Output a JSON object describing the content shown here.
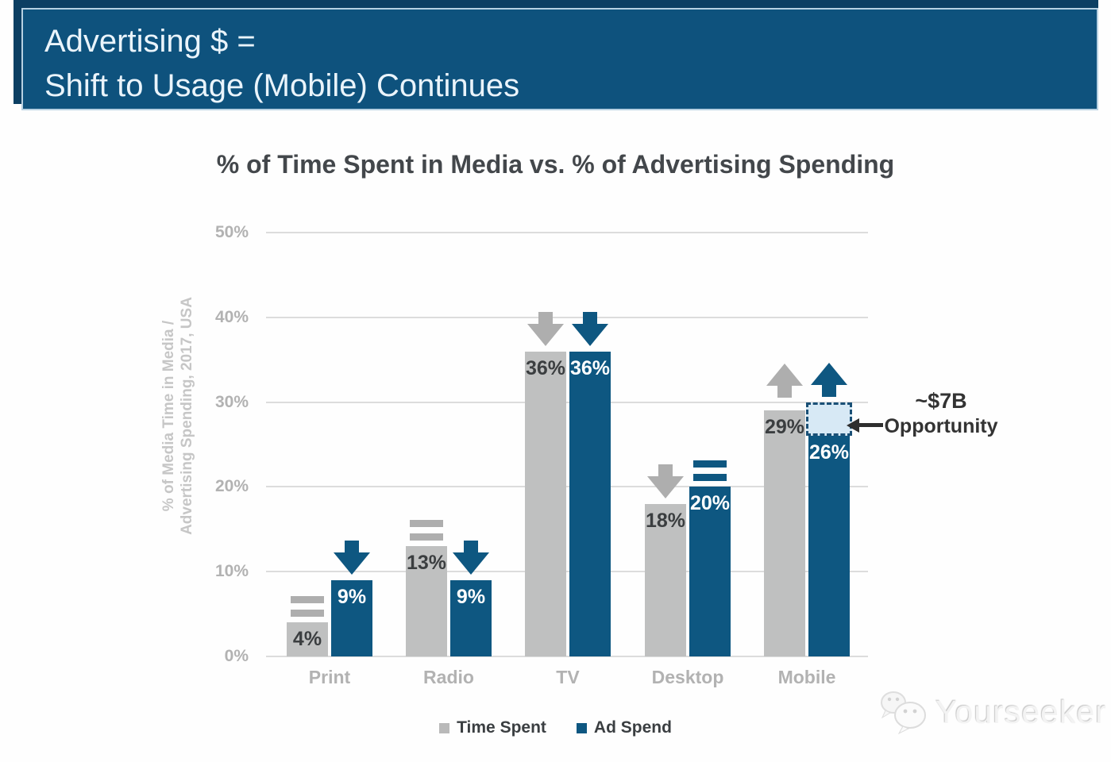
{
  "header": {
    "line1": "Advertising $ =",
    "line2": "Shift to Usage (Mobile) Continues",
    "bg": "#0e527d"
  },
  "chart_data": {
    "type": "bar",
    "title": "% of Time Spent in Media vs. % of Advertising Spending",
    "ylabel": [
      "% of Media Time in Media /",
      "Advertising Spending, 2017, USA"
    ],
    "categories": [
      "Print",
      "Radio",
      "TV",
      "Desktop",
      "Mobile"
    ],
    "series": [
      {
        "name": "Time Spent",
        "color": "#bfc0c0",
        "label_color": "#3b3e40",
        "trend_color": "#aeaeae",
        "values": [
          4,
          13,
          36,
          18,
          29
        ],
        "trends": [
          "equal",
          "equal",
          "down",
          "down",
          "up"
        ]
      },
      {
        "name": "Ad Spend",
        "color": "#0e5781",
        "label_color": "#ffffff",
        "trend_color": "#0e5781",
        "values": [
          9,
          9,
          36,
          20,
          26
        ],
        "trends": [
          "down",
          "down",
          "down",
          "equal",
          "up"
        ]
      }
    ],
    "ylim": [
      0,
      50
    ],
    "yticks": [
      "0%",
      "10%",
      "20%",
      "30%",
      "40%",
      "50%"
    ],
    "grid": true,
    "legend_position": "bottom",
    "annotation": {
      "label_line1": "~$7B",
      "label_line2": "Opportunity",
      "target_category": "Mobile",
      "target_series": "Ad Spend",
      "gap_from": 26,
      "gap_to": 30,
      "box_fill": "#d7e9f5",
      "box_border": "#1a5076"
    }
  },
  "legend": {
    "items": [
      {
        "label": "Time Spent",
        "color": "#b9b9b9"
      },
      {
        "label": "Ad Spend",
        "color": "#0e5781"
      }
    ]
  },
  "watermark": {
    "text": "Yourseeker"
  }
}
